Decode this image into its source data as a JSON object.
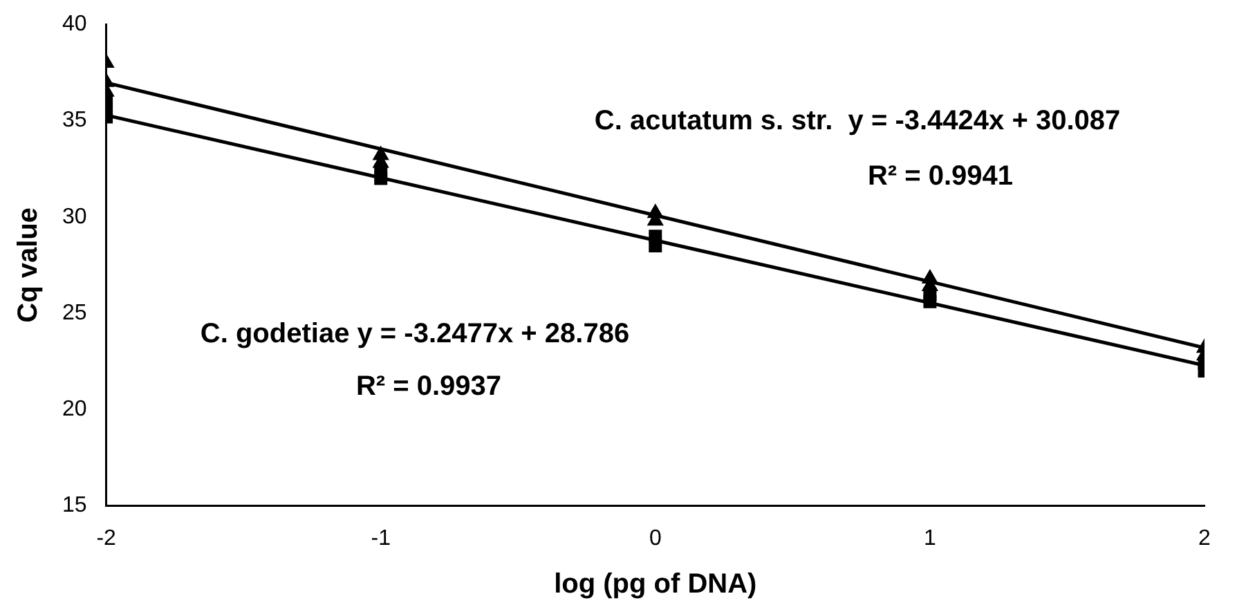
{
  "chart_data": {
    "type": "scatter",
    "xlabel": "log (pg of DNA)",
    "ylabel": "Cq value",
    "xlim": [
      -2,
      2
    ],
    "xticks": [
      -2,
      -1,
      0,
      1,
      2
    ],
    "ylim": [
      15,
      40
    ],
    "yticks": [
      15,
      20,
      25,
      30,
      35,
      40
    ],
    "grid": false,
    "legend": false,
    "series": [
      {
        "marker": "triangle",
        "color": "#000000",
        "x": [
          -2,
          -2,
          -2,
          -1,
          -1,
          0,
          0,
          1,
          1,
          2,
          2
        ],
        "values": [
          38.0,
          37.0,
          36.5,
          33.2,
          32.8,
          30.2,
          29.8,
          26.8,
          26.4,
          23.2,
          22.8
        ]
      },
      {
        "marker": "square",
        "color": "#000000",
        "x": [
          -2,
          -2,
          -2,
          -1,
          -1,
          0,
          0,
          1,
          1,
          2,
          2
        ],
        "values": [
          35.2,
          35.6,
          36.0,
          32.0,
          32.4,
          28.5,
          29.0,
          25.6,
          26.0,
          22.0,
          22.4
        ]
      },
      {
        "type": "line",
        "marker": "none",
        "color": "#000000",
        "x": [
          -2,
          2
        ],
        "values": [
          36.97,
          23.2
        ]
      },
      {
        "type": "line",
        "marker": "none",
        "color": "#000000",
        "x": [
          -2,
          2
        ],
        "values": [
          35.28,
          22.29
        ]
      }
    ],
    "annotations": [
      "C. acutatum s. str.  y = -3.4424x + 30.087",
      "R² = 0.9941",
      "C. godetiae y = -3.2477x + 28.786",
      "R² = 0.9937"
    ]
  }
}
